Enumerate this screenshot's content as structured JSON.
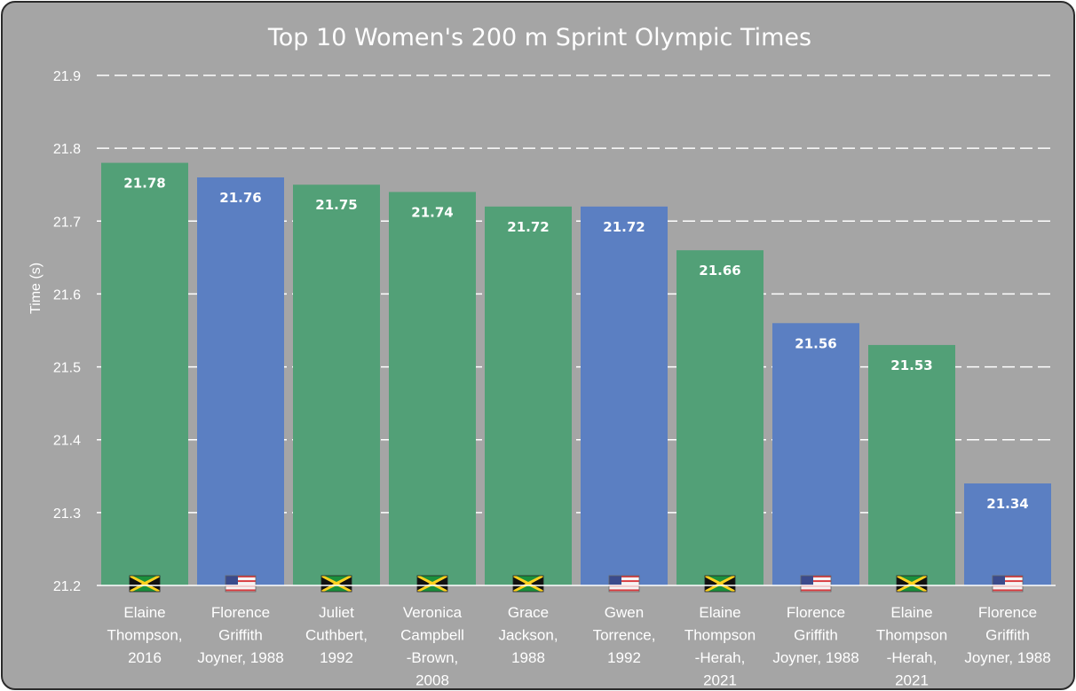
{
  "colors": {
    "background": "#a5a5a5",
    "jamaica_bar": "#52a077",
    "usa_bar": "#5b7fc2",
    "text": "#ffffff",
    "gridline": "#ffffff"
  },
  "chart_data": {
    "type": "bar",
    "title": "Top 10 Women's 200 m Sprint Olympic Times",
    "xlabel": "",
    "ylabel": "Time (s)",
    "ylim": [
      21.2,
      21.9
    ],
    "yticks": [
      "21.2",
      "21.3",
      "21.4",
      "21.5",
      "21.6",
      "21.7",
      "21.8",
      "21.9"
    ],
    "grid": true,
    "categories": [
      [
        "Elaine",
        "Thompson,",
        "2016"
      ],
      [
        "Florence",
        "Griffith",
        "Joyner, 1988"
      ],
      [
        "Juliet",
        "Cuthbert,",
        "1992"
      ],
      [
        "Veronica",
        "Campbell",
        "-Brown,",
        "2008"
      ],
      [
        "Grace",
        "Jackson,",
        "1988"
      ],
      [
        "Gwen",
        "Torrence,",
        "1992"
      ],
      [
        "Elaine",
        "Thompson",
        "-Herah,",
        "2021"
      ],
      [
        "Florence",
        "Griffith",
        "Joyner, 1988"
      ],
      [
        "Elaine",
        "Thompson",
        "-Herah,",
        "2021"
      ],
      [
        "Florence",
        "Griffith",
        "Joyner, 1988"
      ]
    ],
    "values": [
      21.78,
      21.76,
      21.75,
      21.74,
      21.72,
      21.72,
      21.66,
      21.56,
      21.53,
      21.34
    ],
    "data_labels": [
      "21.78",
      "21.76",
      "21.75",
      "21.74",
      "21.72",
      "21.72",
      "21.66",
      "21.56",
      "21.53",
      "21.34"
    ],
    "countries": [
      "jamaica",
      "usa",
      "jamaica",
      "jamaica",
      "jamaica",
      "usa",
      "jamaica",
      "usa",
      "jamaica",
      "usa"
    ],
    "flag_icons": [
      "jamaica-flag-icon",
      "usa-flag-icon",
      "jamaica-flag-icon",
      "jamaica-flag-icon",
      "jamaica-flag-icon",
      "usa-flag-icon",
      "jamaica-flag-icon",
      "usa-flag-icon",
      "jamaica-flag-icon",
      "usa-flag-icon"
    ]
  }
}
